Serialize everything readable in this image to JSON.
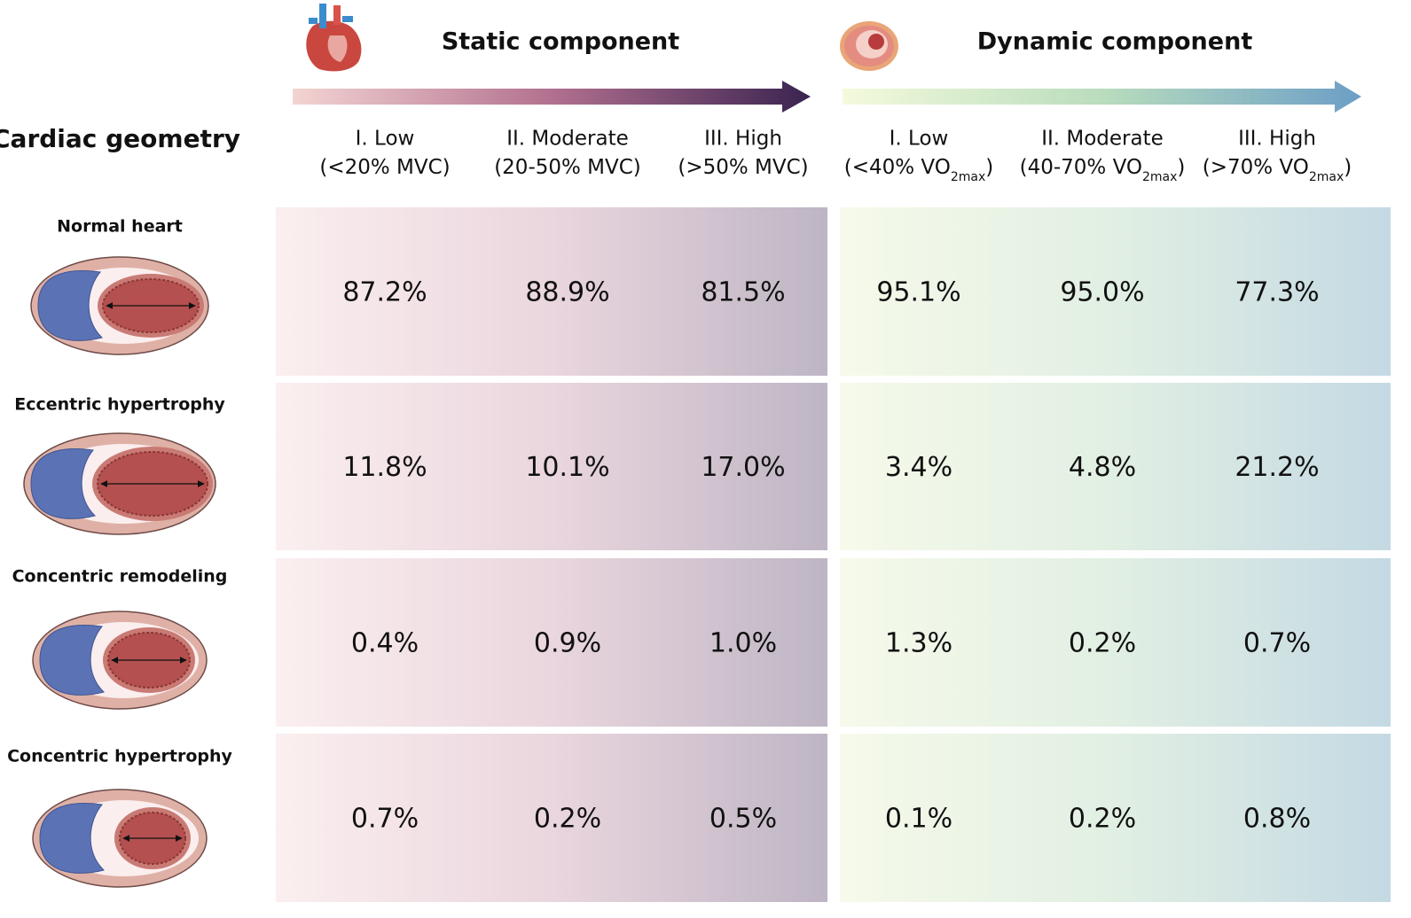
{
  "header": {
    "row_title": "Cardiac geometry",
    "groups": [
      {
        "title": "Static component",
        "levels": [
          {
            "name": "I. Low",
            "range": "(<20% MVC)"
          },
          {
            "name": "II. Moderate",
            "range": "(20-50% MVC)"
          },
          {
            "name": "III. High",
            "range": "(>50% MVC)"
          }
        ]
      },
      {
        "title": "Dynamic component",
        "levels": [
          {
            "name": "I. Low",
            "range": "(<40% VO",
            "subscript": "2max",
            "close": ")"
          },
          {
            "name": "II. Moderate",
            "range": "(40-70% VO",
            "subscript": "2max",
            "close": ")"
          },
          {
            "name": "III. High",
            "range": "(>70% VO",
            "subscript": "2max",
            "close": ")"
          }
        ]
      }
    ]
  },
  "rows": [
    {
      "label": "Normal heart",
      "cells": [
        "87.2%",
        "88.9%",
        "81.5%",
        "95.1%",
        "95.0%",
        "77.3%"
      ]
    },
    {
      "label": "Eccentric hypertrophy",
      "cells": [
        "11.8%",
        "10.1%",
        "17.0%",
        "3.4%",
        "4.8%",
        "21.2%"
      ]
    },
    {
      "label": "Concentric remodeling",
      "cells": [
        "0.4%",
        "0.9%",
        "1.0%",
        "1.3%",
        "0.2%",
        "0.7%"
      ]
    },
    {
      "label": "Concentric hypertrophy",
      "cells": [
        "0.7%",
        "0.2%",
        "0.5%",
        "0.1%",
        "0.2%",
        "0.8%"
      ]
    }
  ]
}
